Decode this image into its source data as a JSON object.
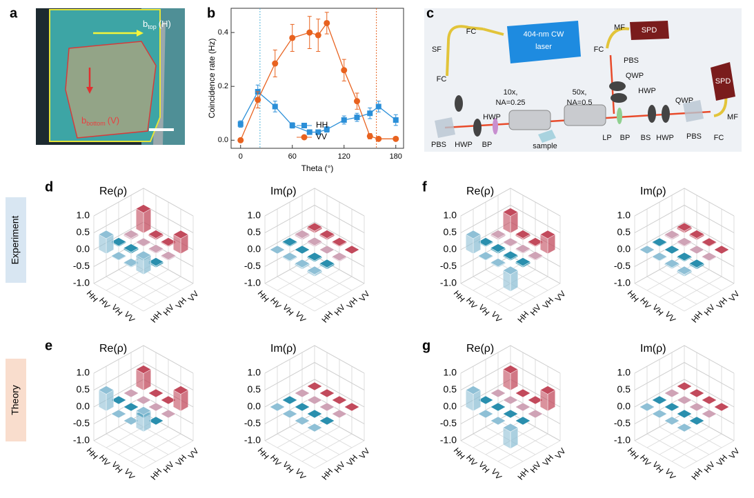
{
  "panel_labels": [
    "a",
    "b",
    "c",
    "d",
    "e",
    "f",
    "g"
  ],
  "panel_a": {
    "label_top": {
      "symbol": "b",
      "subscript": "top",
      "suffix": "(H)"
    },
    "label_bottom": {
      "symbol": "b",
      "subscript": "bottom",
      "suffix": "(V)"
    }
  },
  "panel_c": {
    "labels": [
      "404-nm CW",
      "laser",
      "SPD",
      "SPD",
      "MF",
      "FC",
      "PBS",
      "QWP",
      "HWP",
      "QWP",
      "MF",
      "FC",
      "PBS",
      "HWP",
      "BS",
      "BP",
      "LP",
      "50x,",
      "NA=0.5",
      "10x,",
      "NA=0.25",
      "sample",
      "BP",
      "HWP",
      "PBS",
      "HWP",
      "FC",
      "SF",
      "FC"
    ]
  },
  "row_labels": [
    "Experiment",
    "Theory"
  ],
  "bar3d_colors": [
    "#8fc0d6",
    "#2a8fae",
    "#cfa3b6",
    "#c24a5c"
  ],
  "chart_data": [
    {
      "type": "line",
      "x_label": "Theta (°)",
      "y_label": "Coincidence rate (Hz)",
      "x": [
        0,
        20,
        40,
        60,
        80,
        90,
        100,
        120,
        135,
        150,
        160,
        180
      ],
      "xlim": [
        -11,
        189
      ],
      "xticks": [
        0,
        60,
        120,
        180
      ],
      "ylim": [
        -0.03,
        0.49
      ],
      "yticks": [
        {
          "value": 0,
          "label": "0.0"
        },
        {
          "value": 0.2,
          "label": "0.2"
        },
        {
          "value": 0.4,
          "label": "0.4"
        }
      ],
      "reference_lines": [
        {
          "value": 22.5,
          "color": "#4fb3d9"
        },
        {
          "value": 157.5,
          "color": "#e8621f"
        }
      ],
      "series": [
        {
          "name": "HH",
          "color": "#2b8fd8",
          "marker": "square",
          "values": [
            0.06,
            0.18,
            0.125,
            0.055,
            0.03,
            0.03,
            0.04,
            0.075,
            0.085,
            0.1,
            0.125,
            0.075
          ],
          "errors": [
            0.012,
            0.025,
            0.02,
            0.01,
            0.008,
            0.008,
            0.01,
            0.015,
            0.015,
            0.02,
            0.02,
            0.02
          ]
        },
        {
          "name": "VV",
          "color": "#e8621f",
          "marker": "circle",
          "values": [
            0,
            0.15,
            0.285,
            0.38,
            0.4,
            0.39,
            0.435,
            0.26,
            0.145,
            0.015,
            0.005,
            0.005
          ],
          "errors": [
            0.005,
            0.03,
            0.05,
            0.05,
            0.06,
            0.06,
            0.04,
            0.04,
            0.03,
            0.01,
            0.005,
            0.005
          ]
        }
      ]
    },
    {
      "type": "bar3d",
      "title": "Re(ρ)",
      "rows": [
        "HH",
        "HV",
        "VH",
        "VV"
      ],
      "columns": [
        "HH",
        "HV",
        "VH",
        "VV"
      ],
      "zlim": [
        -1,
        1
      ],
      "zticks": [
        {
          "value": 1,
          "label": "1.0"
        },
        {
          "value": 0.5,
          "label": "0.5"
        },
        {
          "value": 0,
          "label": "0.0"
        },
        {
          "value": -0.5,
          "label": "-0.5"
        },
        {
          "value": -1,
          "label": "-1.0"
        }
      ],
      "values": [
        [
          0.45,
          0.03,
          0.05,
          0.6
        ],
        [
          0.02,
          0.05,
          0.02,
          0.05
        ],
        [
          0.03,
          0.04,
          0.03,
          0.03
        ],
        [
          0.45,
          0.05,
          0.03,
          0.45
        ]
      ]
    },
    {
      "type": "bar3d",
      "title": "Im(ρ)",
      "rows": [
        "HH",
        "HV",
        "VH",
        "VV"
      ],
      "columns": [
        "HH",
        "HV",
        "VH",
        "VV"
      ],
      "zlim": [
        -1,
        1
      ],
      "zticks": [
        {
          "value": 1,
          "label": "1.0"
        },
        {
          "value": 0.5,
          "label": "0.5"
        },
        {
          "value": 0,
          "label": "0.0"
        },
        {
          "value": -0.5,
          "label": "-0.5"
        },
        {
          "value": -1,
          "label": "-1.0"
        }
      ],
      "values": [
        [
          0,
          0.03,
          0.05,
          0.06
        ],
        [
          -0.03,
          0,
          0.04,
          0.05
        ],
        [
          -0.05,
          -0.04,
          0,
          0.03
        ],
        [
          -0.06,
          -0.05,
          -0.03,
          0
        ]
      ]
    },
    {
      "type": "bar3d",
      "title": "Re(ρ)",
      "rows": [
        "HH",
        "HV",
        "VH",
        "VV"
      ],
      "columns": [
        "HH",
        "HV",
        "VH",
        "VV"
      ],
      "zlim": [
        -1,
        1
      ],
      "zticks": [
        {
          "value": 1,
          "label": "1.0"
        },
        {
          "value": 0.5,
          "label": "0.5"
        },
        {
          "value": 0,
          "label": "0.0"
        },
        {
          "value": -0.5,
          "label": "-0.5"
        },
        {
          "value": -1,
          "label": "-1.0"
        }
      ],
      "values": [
        [
          0.5,
          0,
          0,
          0.5
        ],
        [
          0,
          0,
          0,
          0
        ],
        [
          0,
          0,
          0,
          0
        ],
        [
          0.5,
          0,
          0,
          0.5
        ]
      ]
    },
    {
      "type": "bar3d",
      "title": "Im(ρ)",
      "rows": [
        "HH",
        "HV",
        "VH",
        "VV"
      ],
      "columns": [
        "HH",
        "HV",
        "VH",
        "VV"
      ],
      "zlim": [
        -1,
        1
      ],
      "zticks": [
        {
          "value": 1,
          "label": "1.0"
        },
        {
          "value": 0.5,
          "label": "0.5"
        },
        {
          "value": 0,
          "label": "0.0"
        },
        {
          "value": -0.5,
          "label": "-0.5"
        },
        {
          "value": -1,
          "label": "-1.0"
        }
      ],
      "values": [
        [
          0,
          0,
          0,
          0
        ],
        [
          0,
          0,
          0,
          0
        ],
        [
          0,
          0,
          0,
          0
        ],
        [
          0,
          0,
          0,
          0
        ]
      ]
    },
    {
      "type": "bar3d",
      "title": "Re(ρ)",
      "rows": [
        "HH",
        "HV",
        "VH",
        "VV"
      ],
      "columns": [
        "HH",
        "HV",
        "VH",
        "VV"
      ],
      "zlim": [
        -1,
        1
      ],
      "zticks": [
        {
          "value": 1,
          "label": "1.0"
        },
        {
          "value": 0.5,
          "label": "0.5"
        },
        {
          "value": 0,
          "label": "0.0"
        },
        {
          "value": -0.5,
          "label": "-0.5"
        },
        {
          "value": -1,
          "label": "-1.0"
        }
      ],
      "values": [
        [
          0.45,
          0.03,
          0.05,
          0.5
        ],
        [
          0.02,
          0.05,
          0.02,
          0.05
        ],
        [
          0.03,
          0.04,
          0.03,
          0.03
        ],
        [
          -0.5,
          0.05,
          0.03,
          0.45
        ]
      ]
    },
    {
      "type": "bar3d",
      "title": "Im(ρ)",
      "rows": [
        "HH",
        "HV",
        "VH",
        "VV"
      ],
      "columns": [
        "HH",
        "HV",
        "VH",
        "VV"
      ],
      "zlim": [
        -1,
        1
      ],
      "zticks": [
        {
          "value": 1,
          "label": "1.0"
        },
        {
          "value": 0.5,
          "label": "0.5"
        },
        {
          "value": 0,
          "label": "0.0"
        },
        {
          "value": -0.5,
          "label": "-0.5"
        },
        {
          "value": -1,
          "label": "-1.0"
        }
      ],
      "values": [
        [
          0,
          0.02,
          0.04,
          0.06
        ],
        [
          -0.02,
          0,
          0.03,
          0.05
        ],
        [
          -0.04,
          -0.03,
          0,
          0.02
        ],
        [
          -0.06,
          -0.05,
          -0.02,
          0
        ]
      ]
    },
    {
      "type": "bar3d",
      "title": "Re(ρ)",
      "rows": [
        "HH",
        "HV",
        "VH",
        "VV"
      ],
      "columns": [
        "HH",
        "HV",
        "VH",
        "VV"
      ],
      "zlim": [
        -1,
        1
      ],
      "zticks": [
        {
          "value": 1,
          "label": "1.0"
        },
        {
          "value": 0.5,
          "label": "0.5"
        },
        {
          "value": 0,
          "label": "0.0"
        },
        {
          "value": -0.5,
          "label": "-0.5"
        },
        {
          "value": -1,
          "label": "-1.0"
        }
      ],
      "values": [
        [
          0.5,
          0,
          0,
          0.5
        ],
        [
          0,
          0,
          0,
          0
        ],
        [
          0,
          0,
          0,
          0
        ],
        [
          -0.5,
          0,
          0,
          0.5
        ]
      ]
    },
    {
      "type": "bar3d",
      "title": "Im(ρ)",
      "rows": [
        "HH",
        "HV",
        "VH",
        "VV"
      ],
      "columns": [
        "HH",
        "HV",
        "VH",
        "VV"
      ],
      "zlim": [
        -1,
        1
      ],
      "zticks": [
        {
          "value": 1,
          "label": "1.0"
        },
        {
          "value": 0.5,
          "label": "0.5"
        },
        {
          "value": 0,
          "label": "0.0"
        },
        {
          "value": -0.5,
          "label": "-0.5"
        },
        {
          "value": -1,
          "label": "-1.0"
        }
      ],
      "values": [
        [
          0,
          0,
          0,
          0
        ],
        [
          0,
          0,
          0,
          0
        ],
        [
          0,
          0,
          0,
          0
        ],
        [
          0,
          0,
          0,
          0
        ]
      ]
    }
  ]
}
